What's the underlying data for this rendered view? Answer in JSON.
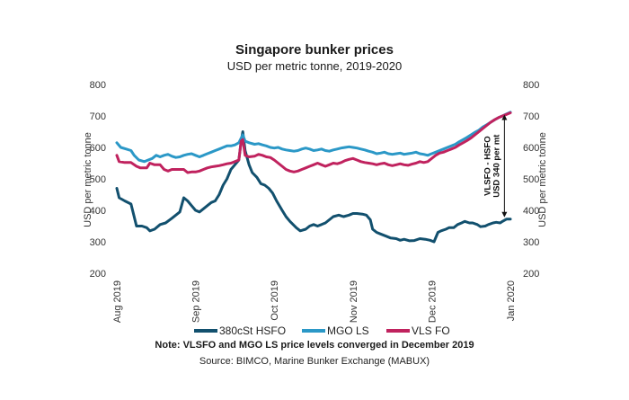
{
  "chart_data": {
    "type": "line",
    "title": "Singapore bunker prices",
    "subtitle": "USD per metric tonne, 2019-2020",
    "ylabel_left": "USD per metric tonne",
    "ylabel_right": "USD per metric tonne",
    "ylim": [
      200,
      800
    ],
    "yticks": [
      200,
      300,
      400,
      500,
      600,
      700,
      800
    ],
    "x_range": [
      0,
      5
    ],
    "xticks": [
      {
        "x": 0,
        "label": "Aug 2019"
      },
      {
        "x": 1,
        "label": "Sep 2019"
      },
      {
        "x": 2,
        "label": "Oct 2019"
      },
      {
        "x": 3,
        "label": "Nov 2019"
      },
      {
        "x": 4,
        "label": "Dec 2019"
      },
      {
        "x": 5,
        "label": "Jan 2020"
      }
    ],
    "series": [
      {
        "name": "380cSt HSFO",
        "color": "#12506e",
        "points": [
          [
            0,
            470
          ],
          [
            0.03,
            440
          ],
          [
            0.1,
            430
          ],
          [
            0.18,
            420
          ],
          [
            0.22,
            380
          ],
          [
            0.25,
            350
          ],
          [
            0.32,
            350
          ],
          [
            0.38,
            345
          ],
          [
            0.42,
            335
          ],
          [
            0.48,
            340
          ],
          [
            0.55,
            355
          ],
          [
            0.62,
            360
          ],
          [
            0.7,
            375
          ],
          [
            0.75,
            385
          ],
          [
            0.8,
            395
          ],
          [
            0.85,
            440
          ],
          [
            0.9,
            430
          ],
          [
            0.95,
            415
          ],
          [
            1.0,
            400
          ],
          [
            1.05,
            395
          ],
          [
            1.1,
            405
          ],
          [
            1.15,
            415
          ],
          [
            1.2,
            425
          ],
          [
            1.25,
            430
          ],
          [
            1.3,
            450
          ],
          [
            1.35,
            480
          ],
          [
            1.4,
            500
          ],
          [
            1.45,
            530
          ],
          [
            1.5,
            545
          ],
          [
            1.55,
            560
          ],
          [
            1.58,
            620
          ],
          [
            1.6,
            650
          ],
          [
            1.63,
            590
          ],
          [
            1.68,
            545
          ],
          [
            1.72,
            520
          ],
          [
            1.78,
            505
          ],
          [
            1.83,
            485
          ],
          [
            1.88,
            480
          ],
          [
            1.93,
            470
          ],
          [
            1.98,
            455
          ],
          [
            2.03,
            430
          ],
          [
            2.1,
            400
          ],
          [
            2.15,
            380
          ],
          [
            2.2,
            365
          ],
          [
            2.28,
            345
          ],
          [
            2.33,
            335
          ],
          [
            2.4,
            340
          ],
          [
            2.45,
            350
          ],
          [
            2.5,
            355
          ],
          [
            2.55,
            350
          ],
          [
            2.6,
            355
          ],
          [
            2.65,
            360
          ],
          [
            2.7,
            370
          ],
          [
            2.75,
            380
          ],
          [
            2.82,
            385
          ],
          [
            2.88,
            380
          ],
          [
            2.95,
            385
          ],
          [
            3.0,
            390
          ],
          [
            3.05,
            390
          ],
          [
            3.12,
            388
          ],
          [
            3.17,
            385
          ],
          [
            3.22,
            370
          ],
          [
            3.25,
            340
          ],
          [
            3.3,
            330
          ],
          [
            3.35,
            325
          ],
          [
            3.42,
            318
          ],
          [
            3.48,
            312
          ],
          [
            3.55,
            310
          ],
          [
            3.6,
            305
          ],
          [
            3.65,
            308
          ],
          [
            3.72,
            303
          ],
          [
            3.78,
            304
          ],
          [
            3.85,
            310
          ],
          [
            3.92,
            308
          ],
          [
            3.98,
            305
          ],
          [
            4.03,
            300
          ],
          [
            4.08,
            330
          ],
          [
            4.12,
            335
          ],
          [
            4.18,
            340
          ],
          [
            4.22,
            345
          ],
          [
            4.28,
            345
          ],
          [
            4.33,
            355
          ],
          [
            4.38,
            360
          ],
          [
            4.42,
            365
          ],
          [
            4.48,
            360
          ],
          [
            4.52,
            360
          ],
          [
            4.58,
            355
          ],
          [
            4.62,
            348
          ],
          [
            4.68,
            350
          ],
          [
            4.72,
            355
          ],
          [
            4.78,
            360
          ],
          [
            4.82,
            362
          ],
          [
            4.87,
            360
          ],
          [
            4.9,
            365
          ],
          [
            4.95,
            372
          ],
          [
            5.0,
            372
          ]
        ]
      },
      {
        "name": "MGO LS",
        "color": "#2b98c7",
        "points": [
          [
            0,
            615
          ],
          [
            0.05,
            600
          ],
          [
            0.12,
            595
          ],
          [
            0.18,
            590
          ],
          [
            0.22,
            575
          ],
          [
            0.28,
            560
          ],
          [
            0.35,
            555
          ],
          [
            0.4,
            560
          ],
          [
            0.45,
            565
          ],
          [
            0.5,
            575
          ],
          [
            0.55,
            570
          ],
          [
            0.6,
            575
          ],
          [
            0.65,
            578
          ],
          [
            0.7,
            572
          ],
          [
            0.75,
            568
          ],
          [
            0.8,
            570
          ],
          [
            0.85,
            575
          ],
          [
            0.9,
            578
          ],
          [
            0.95,
            580
          ],
          [
            1.0,
            575
          ],
          [
            1.05,
            570
          ],
          [
            1.1,
            575
          ],
          [
            1.15,
            580
          ],
          [
            1.2,
            585
          ],
          [
            1.25,
            590
          ],
          [
            1.3,
            595
          ],
          [
            1.35,
            600
          ],
          [
            1.4,
            605
          ],
          [
            1.45,
            605
          ],
          [
            1.5,
            608
          ],
          [
            1.55,
            615
          ],
          [
            1.6,
            640
          ],
          [
            1.63,
            620
          ],
          [
            1.68,
            615
          ],
          [
            1.75,
            610
          ],
          [
            1.8,
            612
          ],
          [
            1.85,
            608
          ],
          [
            1.9,
            605
          ],
          [
            1.95,
            600
          ],
          [
            2.0,
            598
          ],
          [
            2.05,
            600
          ],
          [
            2.1,
            595
          ],
          [
            2.15,
            592
          ],
          [
            2.2,
            590
          ],
          [
            2.25,
            588
          ],
          [
            2.3,
            590
          ],
          [
            2.35,
            595
          ],
          [
            2.4,
            598
          ],
          [
            2.45,
            595
          ],
          [
            2.5,
            590
          ],
          [
            2.55,
            592
          ],
          [
            2.6,
            595
          ],
          [
            2.65,
            590
          ],
          [
            2.7,
            588
          ],
          [
            2.75,
            592
          ],
          [
            2.8,
            595
          ],
          [
            2.85,
            598
          ],
          [
            2.9,
            600
          ],
          [
            2.95,
            602
          ],
          [
            3.0,
            600
          ],
          [
            3.05,
            598
          ],
          [
            3.1,
            595
          ],
          [
            3.15,
            592
          ],
          [
            3.2,
            588
          ],
          [
            3.25,
            585
          ],
          [
            3.3,
            580
          ],
          [
            3.35,
            582
          ],
          [
            3.4,
            585
          ],
          [
            3.45,
            580
          ],
          [
            3.5,
            578
          ],
          [
            3.55,
            580
          ],
          [
            3.6,
            582
          ],
          [
            3.65,
            578
          ],
          [
            3.7,
            580
          ],
          [
            3.75,
            582
          ],
          [
            3.8,
            585
          ],
          [
            3.85,
            580
          ],
          [
            3.9,
            578
          ],
          [
            3.95,
            575
          ],
          [
            4.0,
            580
          ],
          [
            4.05,
            585
          ],
          [
            4.1,
            590
          ],
          [
            4.15,
            595
          ],
          [
            4.2,
            600
          ],
          [
            4.25,
            605
          ],
          [
            4.3,
            610
          ],
          [
            4.35,
            618
          ],
          [
            4.4,
            625
          ],
          [
            4.45,
            632
          ],
          [
            4.5,
            640
          ],
          [
            4.55,
            648
          ],
          [
            4.6,
            655
          ],
          [
            4.65,
            665
          ],
          [
            4.7,
            672
          ],
          [
            4.75,
            680
          ],
          [
            4.8,
            688
          ],
          [
            4.85,
            695
          ],
          [
            4.9,
            700
          ],
          [
            4.95,
            706
          ],
          [
            5.0,
            712
          ]
        ]
      },
      {
        "name": "VLS FO",
        "color": "#c0225e",
        "points": [
          [
            0,
            575
          ],
          [
            0.03,
            555
          ],
          [
            0.1,
            552
          ],
          [
            0.18,
            552
          ],
          [
            0.25,
            540
          ],
          [
            0.3,
            535
          ],
          [
            0.38,
            535
          ],
          [
            0.42,
            550
          ],
          [
            0.48,
            545
          ],
          [
            0.55,
            545
          ],
          [
            0.6,
            530
          ],
          [
            0.65,
            525
          ],
          [
            0.7,
            530
          ],
          [
            0.78,
            530
          ],
          [
            0.85,
            530
          ],
          [
            0.9,
            520
          ],
          [
            0.95,
            522
          ],
          [
            1.0,
            522
          ],
          [
            1.05,
            525
          ],
          [
            1.1,
            530
          ],
          [
            1.15,
            535
          ],
          [
            1.2,
            538
          ],
          [
            1.25,
            540
          ],
          [
            1.3,
            542
          ],
          [
            1.35,
            545
          ],
          [
            1.4,
            548
          ],
          [
            1.45,
            550
          ],
          [
            1.5,
            555
          ],
          [
            1.55,
            560
          ],
          [
            1.58,
            620
          ],
          [
            1.6,
            625
          ],
          [
            1.63,
            575
          ],
          [
            1.68,
            570
          ],
          [
            1.75,
            572
          ],
          [
            1.8,
            578
          ],
          [
            1.85,
            575
          ],
          [
            1.9,
            570
          ],
          [
            1.95,
            568
          ],
          [
            2.0,
            560
          ],
          [
            2.05,
            550
          ],
          [
            2.1,
            540
          ],
          [
            2.15,
            530
          ],
          [
            2.2,
            525
          ],
          [
            2.25,
            522
          ],
          [
            2.3,
            525
          ],
          [
            2.35,
            530
          ],
          [
            2.4,
            535
          ],
          [
            2.45,
            540
          ],
          [
            2.5,
            545
          ],
          [
            2.55,
            550
          ],
          [
            2.6,
            545
          ],
          [
            2.65,
            540
          ],
          [
            2.7,
            545
          ],
          [
            2.75,
            550
          ],
          [
            2.8,
            548
          ],
          [
            2.85,
            552
          ],
          [
            2.9,
            558
          ],
          [
            2.95,
            562
          ],
          [
            3.0,
            565
          ],
          [
            3.05,
            560
          ],
          [
            3.1,
            555
          ],
          [
            3.15,
            552
          ],
          [
            3.2,
            550
          ],
          [
            3.25,
            548
          ],
          [
            3.3,
            545
          ],
          [
            3.35,
            548
          ],
          [
            3.4,
            550
          ],
          [
            3.45,
            545
          ],
          [
            3.5,
            542
          ],
          [
            3.55,
            545
          ],
          [
            3.6,
            548
          ],
          [
            3.65,
            545
          ],
          [
            3.7,
            543
          ],
          [
            3.75,
            547
          ],
          [
            3.8,
            550
          ],
          [
            3.85,
            555
          ],
          [
            3.9,
            552
          ],
          [
            3.95,
            555
          ],
          [
            4.0,
            565
          ],
          [
            4.05,
            575
          ],
          [
            4.1,
            582
          ],
          [
            4.15,
            585
          ],
          [
            4.2,
            590
          ],
          [
            4.25,
            595
          ],
          [
            4.3,
            600
          ],
          [
            4.35,
            608
          ],
          [
            4.4,
            615
          ],
          [
            4.45,
            622
          ],
          [
            4.5,
            630
          ],
          [
            4.55,
            640
          ],
          [
            4.6,
            650
          ],
          [
            4.65,
            660
          ],
          [
            4.7,
            670
          ],
          [
            4.75,
            680
          ],
          [
            4.8,
            688
          ],
          [
            4.85,
            695
          ],
          [
            4.9,
            700
          ],
          [
            4.95,
            705
          ],
          [
            5.0,
            710
          ]
        ]
      }
    ],
    "annotation": {
      "line1": "VLSFO - HSFO",
      "line2": "USD 340 per mt",
      "x": 4.97,
      "y_top": 710,
      "y_bottom": 372
    },
    "note": "Note: VLSFO and MGO LS price levels converged in December 2019",
    "source": "Source: BIMCO, Marine Bunker Exchange (MABUX)"
  }
}
